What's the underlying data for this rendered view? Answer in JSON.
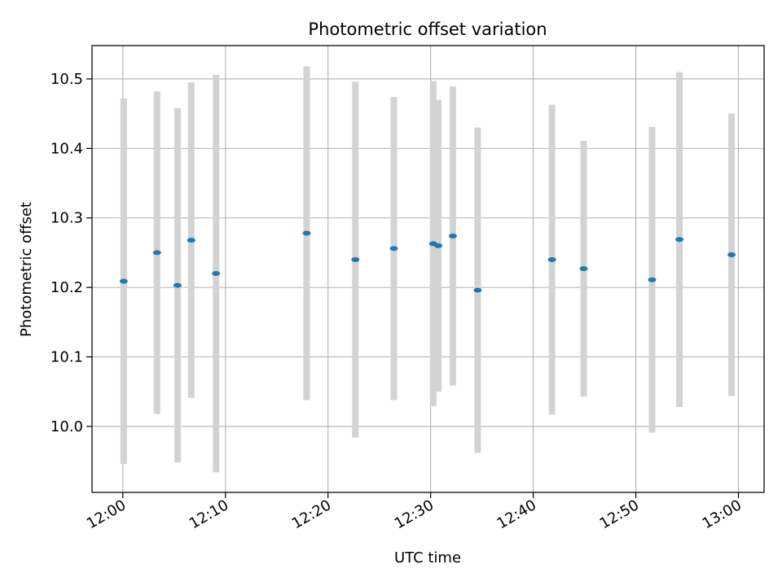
{
  "chart_data": {
    "type": "scatter",
    "title": "Photometric offset variation",
    "xlabel": "UTC time",
    "ylabel": "Photometric offset",
    "x_ticks": [
      "12:00",
      "12:10",
      "12:20",
      "12:30",
      "12:40",
      "12:50",
      "13:00"
    ],
    "y_ticks": [
      "10.0",
      "10.1",
      "10.2",
      "10.3",
      "10.4",
      "10.5"
    ],
    "xlim": [
      "11:57:00",
      "13:02:30"
    ],
    "ylim": [
      9.905,
      10.548
    ],
    "grid": true,
    "marker_color": "#1f77b4",
    "errorbar_color": "#d3d3d3",
    "points": [
      {
        "time": "12:00:05",
        "y": 10.209,
        "yerr": 0.263
      },
      {
        "time": "12:03:20",
        "y": 10.25,
        "yerr": 0.232
      },
      {
        "time": "12:05:20",
        "y": 10.203,
        "yerr": 0.255
      },
      {
        "time": "12:06:40",
        "y": 10.268,
        "yerr": 0.227
      },
      {
        "time": "12:09:05",
        "y": 10.22,
        "yerr": 0.286
      },
      {
        "time": "12:17:55",
        "y": 10.278,
        "yerr": 0.24
      },
      {
        "time": "12:22:40",
        "y": 10.24,
        "yerr": 0.256
      },
      {
        "time": "12:26:25",
        "y": 10.256,
        "yerr": 0.218
      },
      {
        "time": "12:30:15",
        "y": 10.263,
        "yerr": 0.234
      },
      {
        "time": "12:30:45",
        "y": 10.26,
        "yerr": 0.21
      },
      {
        "time": "12:32:10",
        "y": 10.274,
        "yerr": 0.215
      },
      {
        "time": "12:34:35",
        "y": 10.196,
        "yerr": 0.234
      },
      {
        "time": "12:41:50",
        "y": 10.24,
        "yerr": 0.223
      },
      {
        "time": "12:44:55",
        "y": 10.227,
        "yerr": 0.184
      },
      {
        "time": "12:51:35",
        "y": 10.211,
        "yerr": 0.22
      },
      {
        "time": "12:54:15",
        "y": 10.269,
        "yerr": 0.241
      },
      {
        "time": "12:59:20",
        "y": 10.247,
        "yerr": 0.203
      }
    ]
  }
}
